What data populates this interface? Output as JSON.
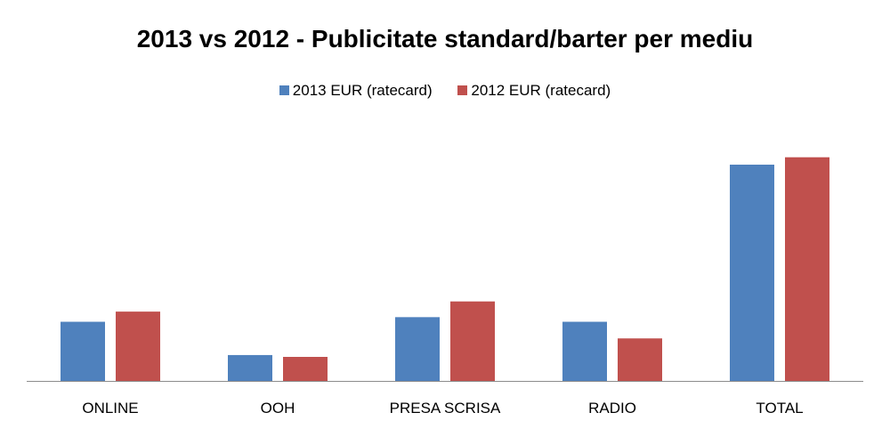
{
  "chart_data": {
    "type": "bar",
    "title": "2013 vs 2012 - Publicitate standard/barter per mediu",
    "categories": [
      "ONLINE",
      "OOH",
      "PRESA SCRISA",
      "RADIO",
      "TOTAL"
    ],
    "series": [
      {
        "name": "2013 EUR (ratecard)",
        "color": "#4F81BD",
        "values": [
          64,
          28,
          69,
          64,
          234
        ]
      },
      {
        "name": "2012 EUR (ratecard)",
        "color": "#C0504D",
        "values": [
          75,
          26,
          86,
          46,
          242
        ]
      }
    ],
    "ylim": [
      0,
      260
    ],
    "grid": false,
    "legend_position": "top"
  }
}
